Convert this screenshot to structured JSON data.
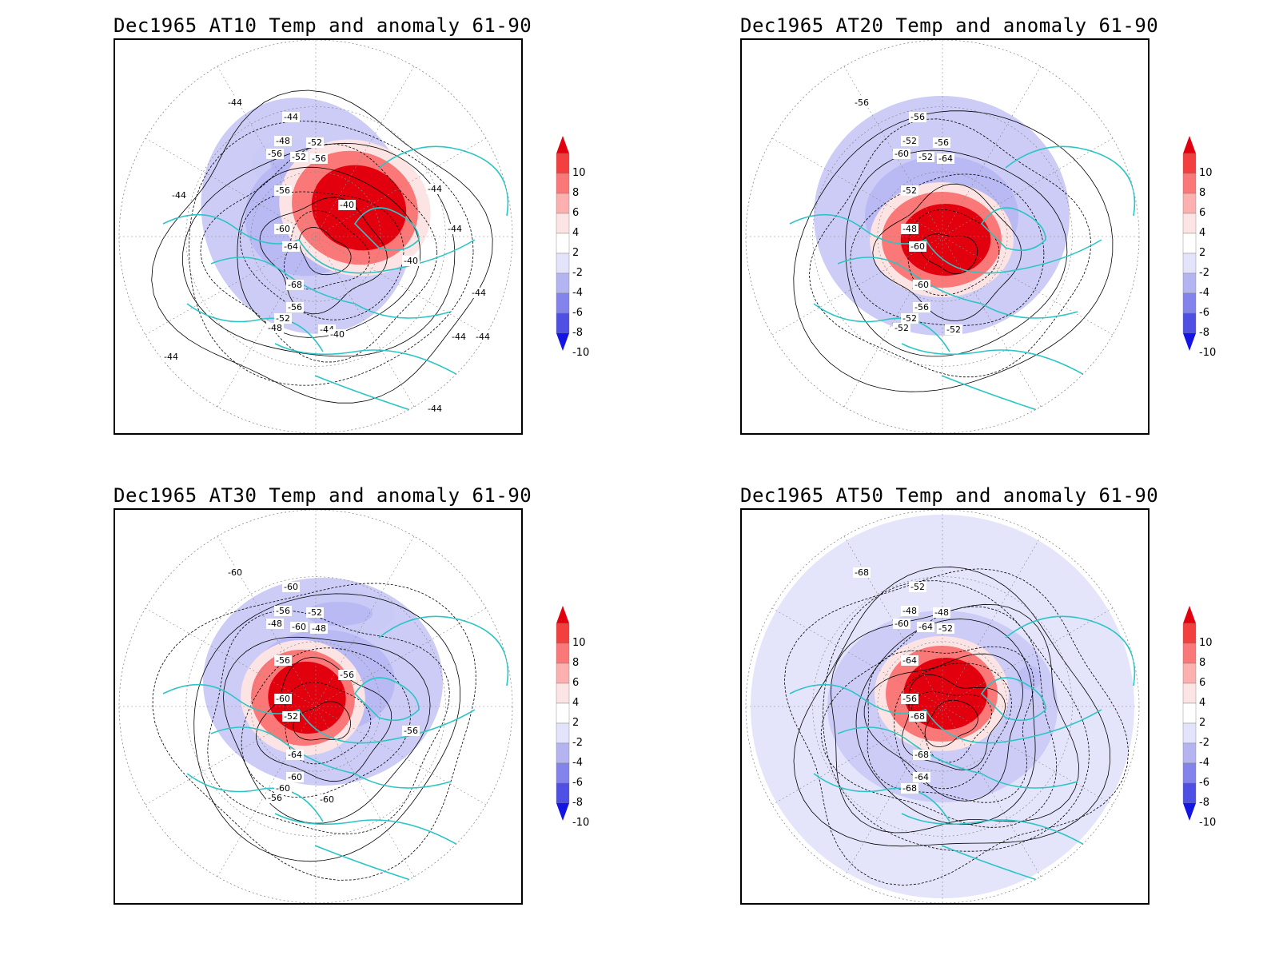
{
  "panels": [
    {
      "title": "Dec1965 AT10 Temp and anomaly 61-90",
      "level": "AT10",
      "contour_labels": [
        "-44",
        "-44",
        "-48",
        "-52",
        "-52",
        "-56",
        "-56",
        "-56",
        "-60",
        "-64",
        "-68",
        "-56",
        "-52",
        "-48",
        "-44",
        "-40",
        "-40",
        "-40",
        "-44",
        "-44",
        "-44",
        "-44",
        "-44",
        "-44",
        "-44",
        "-44"
      ],
      "anomaly_center": "warm-center-cold-ring"
    },
    {
      "title": "Dec1965 AT20 Temp and anomaly 61-90",
      "level": "AT20",
      "contour_labels": [
        "-56",
        "-56",
        "-52",
        "-52",
        "-56",
        "-60",
        "-64",
        "-52",
        "-48",
        "-60",
        "-60",
        "-56",
        "-52",
        "-52",
        "-52"
      ],
      "anomaly_center": "warm-center-cold-ring"
    },
    {
      "title": "Dec1965 AT30 Temp and anomaly 61-90",
      "level": "AT30",
      "contour_labels": [
        "-60",
        "-60",
        "-56",
        "-60",
        "-52",
        "-48",
        "-48",
        "-56",
        "-60",
        "-52",
        "-64",
        "-60",
        "-60",
        "-56",
        "-60",
        "-56",
        "-56"
      ],
      "anomaly_center": "warm-center-cold-ring"
    },
    {
      "title": "Dec1965 AT50 Temp and anomaly 61-90",
      "level": "AT50",
      "contour_labels": [
        "-68",
        "-52",
        "-48",
        "-64",
        "-48",
        "-60",
        "-52",
        "-64",
        "-56",
        "-68",
        "-68",
        "-64",
        "-68"
      ],
      "anomaly_center": "warm-center-cold-ring"
    }
  ],
  "colorbar": {
    "labels": [
      "10",
      "8",
      "6",
      "4",
      "2",
      "-2",
      "-4",
      "-6",
      "-8",
      "-10"
    ],
    "colors": [
      "#e3000e",
      "#f43f3f",
      "#fb7878",
      "#fdb0b0",
      "#fde4e4",
      "#ffffff",
      "#e3e3fb",
      "#b4b4f3",
      "#8383ec",
      "#4f4fe3",
      "#1414e3"
    ]
  },
  "colors": {
    "coastline": "#2bc5c5",
    "contour": "#000000",
    "grid": "#8a8a8a"
  }
}
